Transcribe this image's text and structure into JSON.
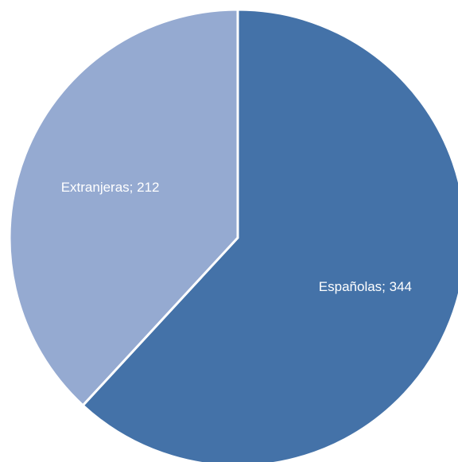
{
  "chart_data": {
    "type": "pie",
    "title": "",
    "slices": [
      {
        "label": "Españolas",
        "value": 344,
        "color": "#4472A8"
      },
      {
        "label": "Extranjeras",
        "value": 212,
        "color": "#95AAD1"
      }
    ],
    "data_labels": {
      "format": "{label}; {value}",
      "color": "#FFFFFF"
    },
    "start_angle_deg": 0,
    "direction": "clockwise",
    "legend": "none"
  }
}
